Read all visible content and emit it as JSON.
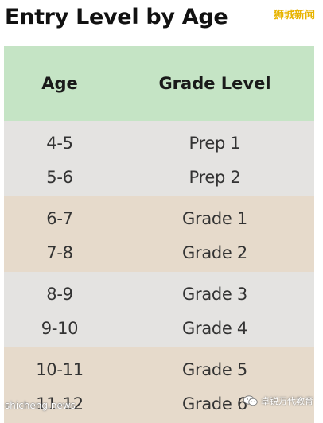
{
  "title": "Entry Level by Age",
  "watermarks": {
    "top_right": "狮城新闻",
    "bottom_left": "shicheng.news",
    "bottom_right": "卓锐万代教育",
    "bottom_right_icon": "wechat-icon"
  },
  "table": {
    "headers": {
      "age": "Age",
      "grade": "Grade Level"
    },
    "rows": [
      {
        "age": "4-5",
        "grade": "Prep 1"
      },
      {
        "age": "5-6",
        "grade": "Prep 2"
      },
      {
        "age": "6-7",
        "grade": "Grade 1"
      },
      {
        "age": "7-8",
        "grade": "Grade 2"
      },
      {
        "age": "8-9",
        "grade": "Grade 3"
      },
      {
        "age": "9-10",
        "grade": "Grade 4"
      },
      {
        "age": "10-11",
        "grade": "Grade 5"
      },
      {
        "age": "11-12",
        "grade": "Grade 6"
      }
    ]
  },
  "colors": {
    "header_bg": "#c5e4c5",
    "band_gray": "#e4e3e1",
    "band_tan": "#e6dacb",
    "watermark_gold": "#e8b400"
  }
}
